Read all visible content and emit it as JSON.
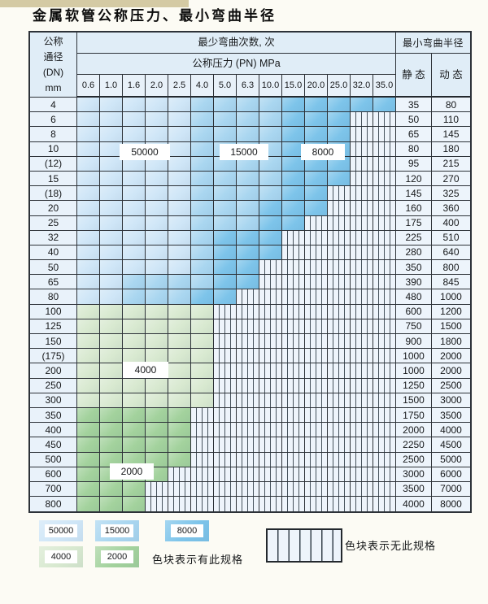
{
  "title": "金属软管公称压力、最小弯曲半径",
  "table": {
    "corner_header": [
      "公称",
      "通径",
      "(DN)",
      "mm"
    ],
    "bend_cycles_header": "最少弯曲次数, 次",
    "pressure_header": "公称压力 (PN) MPa",
    "radius_header": "最小弯曲半径",
    "static_header": "静 态",
    "dynamic_header": "动 态",
    "pressure_columns": [
      "0.6",
      "1.0",
      "1.6",
      "2.0",
      "2.5",
      "4.0",
      "5.0",
      "6.3",
      "10.0",
      "15.0",
      "20.0",
      "25.0",
      "32.0",
      "35.0"
    ],
    "rows": [
      {
        "dn": "4",
        "zones": "LLLLLMMMMDDDDD",
        "static": "35",
        "dynamic": "80"
      },
      {
        "dn": "6",
        "zones": "LLLLLMMMMDDDHH",
        "static": "50",
        "dynamic": "110"
      },
      {
        "dn": "8",
        "zones": "LLLLLMMMMDDDHH",
        "static": "65",
        "dynamic": "145"
      },
      {
        "dn": "10",
        "zones": "LLLLLMMMMDDDHH",
        "static": "80",
        "dynamic": "180"
      },
      {
        "dn": "(12)",
        "zones": "LLLLLMMMMDDDHH",
        "static": "95",
        "dynamic": "215"
      },
      {
        "dn": "15",
        "zones": "LLLLLMMMMDDDHH",
        "static": "120",
        "dynamic": "270"
      },
      {
        "dn": "(18)",
        "zones": "LLLLLMMMMDDHHH",
        "static": "145",
        "dynamic": "325"
      },
      {
        "dn": "20",
        "zones": "LLLLLMMMDDDHHH",
        "static": "160",
        "dynamic": "360"
      },
      {
        "dn": "25",
        "zones": "LLLLLMMMDDHHHH",
        "static": "175",
        "dynamic": "400"
      },
      {
        "dn": "32",
        "zones": "LLLLLMDDDHHHHH",
        "static": "225",
        "dynamic": "510"
      },
      {
        "dn": "40",
        "zones": "LLLLLMDDDHHHHH",
        "static": "280",
        "dynamic": "640"
      },
      {
        "dn": "50",
        "zones": "LLLLLMDDHHHHHH",
        "static": "350",
        "dynamic": "800"
      },
      {
        "dn": "65",
        "zones": "LLMMMMDDHHHHHH",
        "static": "390",
        "dynamic": "845"
      },
      {
        "dn": "80",
        "zones": "LLMMMDDHHHHHHH",
        "static": "480",
        "dynamic": "1000"
      },
      {
        "dn": "100",
        "zones": "GGGGGGHHHHHHHH",
        "static": "600",
        "dynamic": "1200"
      },
      {
        "dn": "125",
        "zones": "GGGGGGHHHHHHHH",
        "static": "750",
        "dynamic": "1500"
      },
      {
        "dn": "150",
        "zones": "GGGGGGHHHHHHHH",
        "static": "900",
        "dynamic": "1800"
      },
      {
        "dn": "(175)",
        "zones": "GGGGGGHHHHHHHH",
        "static": "1000",
        "dynamic": "2000"
      },
      {
        "dn": "200",
        "zones": "GGGGGGHHHHHHHH",
        "static": "1000",
        "dynamic": "2000"
      },
      {
        "dn": "250",
        "zones": "GGGGGGHHHHHHHH",
        "static": "1250",
        "dynamic": "2500"
      },
      {
        "dn": "300",
        "zones": "GGGGGGHHHHHHHH",
        "static": "1500",
        "dynamic": "3000"
      },
      {
        "dn": "350",
        "zones": "TTTTTHHHHHHHHH",
        "static": "1750",
        "dynamic": "3500"
      },
      {
        "dn": "400",
        "zones": "TTTTTHHHHHHHHH",
        "static": "2000",
        "dynamic": "4000"
      },
      {
        "dn": "450",
        "zones": "TTTTTHHHHHHHHH",
        "static": "2250",
        "dynamic": "4500"
      },
      {
        "dn": "500",
        "zones": "TTTTTHHHHHHHHH",
        "static": "2500",
        "dynamic": "5000"
      },
      {
        "dn": "600",
        "zones": "TTTTHHHHHHHHHH",
        "static": "3000",
        "dynamic": "6000"
      },
      {
        "dn": "700",
        "zones": "TTTHHHHHHHHHHH",
        "static": "3500",
        "dynamic": "7000"
      },
      {
        "dn": "800",
        "zones": "TTTHHHHHHHHHHH",
        "static": "4000",
        "dynamic": "8000"
      }
    ]
  },
  "overlays": [
    {
      "text": "50000",
      "row_dn": "10",
      "col_start": "1.6",
      "col_end": "2.0"
    },
    {
      "text": "15000",
      "row_dn": "10",
      "col_start": "5.0",
      "col_end": "6.3"
    },
    {
      "text": "8000",
      "row_dn": "10",
      "col_start": "15.0",
      "col_end": "20.0"
    },
    {
      "text": "4000",
      "row_dn": "200",
      "col_start": "1.6",
      "col_end": "2.0"
    },
    {
      "text": "2000",
      "row_dn": "600",
      "col_start": "1.0",
      "col_end": "1.6"
    }
  ],
  "legend": {
    "has_spec_items": [
      {
        "label": "50000",
        "zone": "L"
      },
      {
        "label": "15000",
        "zone": "M"
      },
      {
        "label": "8000",
        "zone": "D"
      },
      {
        "label": "4000",
        "zone": "G"
      },
      {
        "label": "2000",
        "zone": "T"
      }
    ],
    "has_spec_note": "色块表示有此规格",
    "no_spec_note": "色块表示无此规格"
  },
  "colors": {
    "zone_50000": "#cfe6f7",
    "zone_15000": "#a9d6f0",
    "zone_8000": "#7dc4ea",
    "zone_4000": "#d8e9d0",
    "zone_2000": "#a3d29d",
    "no_spec_bg": "#eef4fb"
  },
  "chart_data": {
    "type": "table",
    "title": "金属软管公称压力、最小弯曲半径",
    "columns": [
      "公称通径(DN) mm",
      "0.6",
      "1.0",
      "1.6",
      "2.0",
      "2.5",
      "4.0",
      "5.0",
      "6.3",
      "10.0",
      "15.0",
      "20.0",
      "25.0",
      "32.0",
      "35.0",
      "静态",
      "动态"
    ],
    "zone_legend": {
      "L": "50000次",
      "M": "15000次",
      "D": "8000次",
      "G": "4000次",
      "T": "2000次",
      "H": "无此规格"
    },
    "notes": [
      "色块表示有此规格",
      "色块表示无此规格"
    ]
  }
}
